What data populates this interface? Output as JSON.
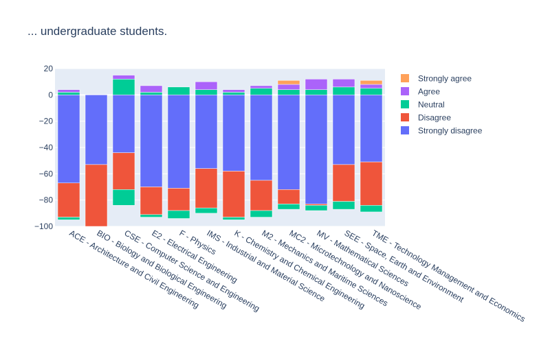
{
  "chart_data": {
    "type": "bar",
    "stacked": true,
    "title": "... undergraduate students.",
    "xlabel": "",
    "ylabel": "",
    "ylim": [
      -100,
      20
    ],
    "yticks": [
      -100,
      -80,
      -60,
      -40,
      -20,
      0,
      20
    ],
    "grid": true,
    "legend_position": "top-right",
    "categories": [
      "ACE - Architecture and Civil Engineering",
      "BIO - Biology and Biological Engineering",
      "CSE - Computer Science and Engineering",
      "E2 - Electrical Engineering",
      "F - Physics",
      "IMS - Industrial and Material Science",
      "K - Chemistry and Chemical Engineering",
      "M2 - Mechanics and Maritime Sciences",
      "MC2 - Microtechnology and Nanoscience",
      "MV - Mathematical Sciences",
      "SEE - Space, Earth and Environment",
      "TME - Technology Management and Economics"
    ],
    "series": [
      {
        "name": "Strongly disagree",
        "color": "#636efa",
        "values": [
          -67,
          -53,
          -44,
          -70,
          -71,
          -56,
          -58,
          -65,
          -72,
          -83,
          -53,
          -51
        ]
      },
      {
        "name": "Disagree",
        "color": "#ef553b",
        "values": [
          -26,
          -47,
          -28,
          -21,
          -17,
          -30,
          -35,
          -23,
          -11,
          -1,
          -28,
          -33
        ]
      },
      {
        "name": "Neutral",
        "color": "#00cc96",
        "values": [
          -2,
          0,
          -12,
          -2,
          -6,
          -4,
          -2,
          -5,
          -4,
          -4,
          -6,
          -5
        ]
      },
      {
        "name": "Neutral",
        "color": "#00cc96",
        "values": [
          2,
          0,
          12,
          2,
          6,
          4,
          2,
          5,
          4,
          4,
          6,
          5
        ],
        "showlegend": false
      },
      {
        "name": "Agree",
        "color": "#ab63fa",
        "values": [
          2,
          0,
          3,
          5,
          0,
          6,
          2,
          2,
          4,
          8,
          6,
          3
        ]
      },
      {
        "name": "Strongly agree",
        "color": "#ffa15a",
        "values": [
          0,
          0,
          0,
          0,
          0,
          0,
          0,
          0,
          3,
          0,
          0,
          3
        ]
      }
    ],
    "legend_order": [
      "Strongly agree",
      "Agree",
      "Neutral",
      "Disagree",
      "Strongly disagree"
    ]
  }
}
